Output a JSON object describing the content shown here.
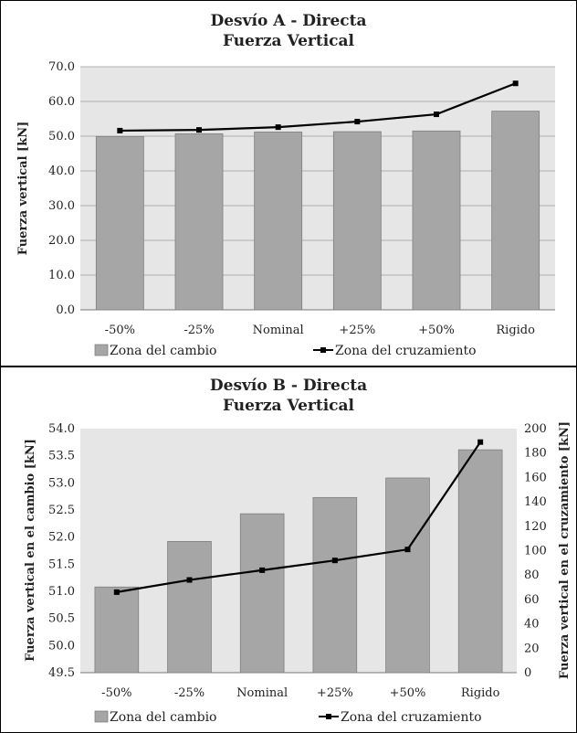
{
  "chart_data": [
    {
      "type": "bar",
      "title": "Desvío A - Directa",
      "subtitle": "Fuerza Vertical",
      "categories": [
        "-50%",
        "-25%",
        "Nominal",
        "+25%",
        "+50%",
        "Rigido"
      ],
      "ylabel": "Fuerza vertical [kN]",
      "ylim": [
        0,
        70
      ],
      "yticks": [
        "0.0",
        "10.0",
        "20.0",
        "30.0",
        "40.0",
        "50.0",
        "60.0",
        "70.0"
      ],
      "series": [
        {
          "name": "Zona del cambio",
          "type": "bar",
          "values": [
            49.9,
            50.7,
            51.2,
            51.3,
            51.5,
            57.2
          ],
          "color": "#a6a6a6"
        },
        {
          "name": "Zona del cruzamiento",
          "type": "line",
          "values": [
            51.6,
            51.8,
            52.6,
            54.2,
            56.3,
            65.2
          ],
          "color": "#000000"
        }
      ],
      "legend_position": "bottom"
    },
    {
      "type": "bar",
      "title": "Desvío B - Directa",
      "subtitle": "Fuerza Vertical",
      "categories": [
        "-50%",
        "-25%",
        "Nominal",
        "+25%",
        "+50%",
        "Rigido"
      ],
      "ylabel": "Fuerza vertical en el cambio [kN]",
      "ylim": [
        49.5,
        54.0
      ],
      "yticks": [
        "49.5",
        "50.0",
        "50.5",
        "51.0",
        "51.5",
        "52.0",
        "52.5",
        "53.0",
        "53.5",
        "54.0"
      ],
      "y2label": "Fuerza vertical en el cruzamiento [kN]",
      "y2lim": [
        0,
        200
      ],
      "y2ticks": [
        "0",
        "20",
        "40",
        "60",
        "80",
        "100",
        "120",
        "140",
        "160",
        "180",
        "200"
      ],
      "series": [
        {
          "name": "Zona del cambio",
          "type": "bar",
          "axis": "left",
          "values": [
            51.08,
            51.92,
            52.43,
            52.73,
            53.09,
            53.61
          ],
          "color": "#a6a6a6"
        },
        {
          "name": "Zona del cruzamiento",
          "type": "line",
          "axis": "right",
          "values": [
            66,
            76,
            84,
            92,
            101,
            189
          ],
          "color": "#000000"
        }
      ],
      "legend_position": "bottom"
    }
  ]
}
